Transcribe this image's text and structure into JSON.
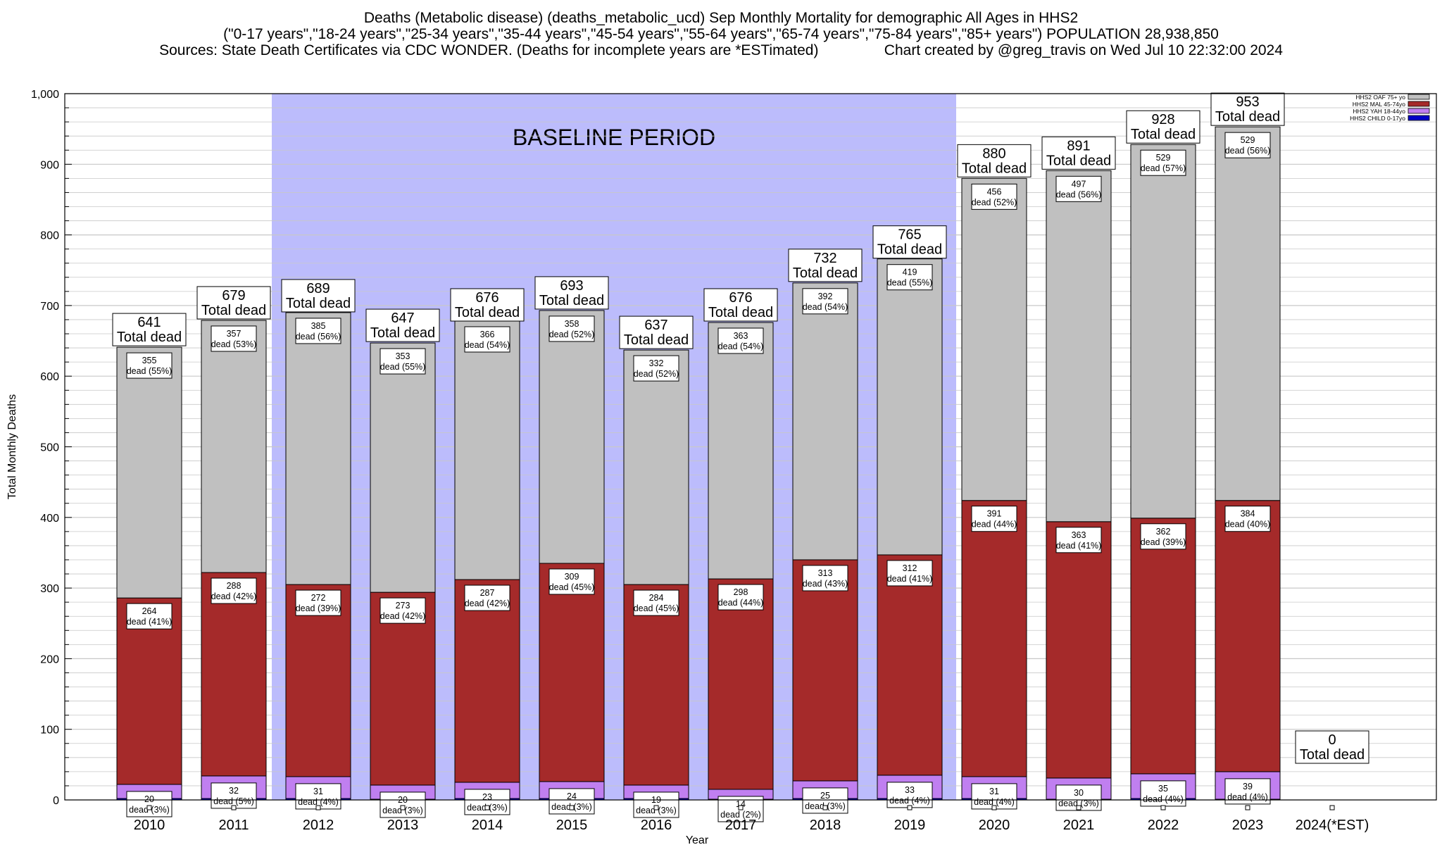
{
  "title": {
    "line1": "Deaths (Metabolic disease) (deaths_metabolic_ucd) Sep Monthly Mortality for demographic All Ages in HHS2",
    "line2": "(\"0-17 years\",\"18-24 years\",\"25-34 years\",\"35-44 years\",\"45-54 years\",\"55-64 years\",\"65-74 years\",\"75-84 years\",\"85+ years\") POPULATION 28,938,850",
    "line3": "Sources: State Death Certificates via CDC WONDER. (Deaths for incomplete years are *ESTimated)                Chart created by @greg_travis on Wed Jul 10 22:32:00 2024"
  },
  "colors": {
    "oaf": "#c0c0c0",
    "mal": "#a52a2a",
    "yah": "#c07ff0",
    "child": "#0000c8",
    "baseline": "#bcbcfc",
    "grid": "#c8c8c8"
  },
  "chart_data": {
    "type": "bar",
    "stacked": true,
    "xlabel": "Year",
    "ylabel": "Total Monthly Deaths",
    "ylim": [
      0,
      1000
    ],
    "yticks": [
      0,
      100,
      200,
      300,
      400,
      500,
      600,
      700,
      800,
      900,
      1000
    ],
    "ytick_labels": [
      "0",
      "100",
      "200",
      "300",
      "400",
      "500",
      "600",
      "700",
      "800",
      "900",
      "1,000"
    ],
    "grid": true,
    "categories": [
      "2010",
      "2011",
      "2012",
      "2013",
      "2014",
      "2015",
      "2016",
      "2017",
      "2018",
      "2019",
      "2020",
      "2021",
      "2022",
      "2023",
      "2024(*EST)"
    ],
    "totals": [
      641,
      679,
      689,
      647,
      676,
      693,
      637,
      676,
      732,
      765,
      880,
      891,
      928,
      953,
      0
    ],
    "total_label_suffix": "Total dead",
    "series": [
      {
        "key": "child",
        "name": "HHS2 CHILD 0-17yo",
        "values": [
          2,
          2,
          2,
          1,
          2,
          2,
          2,
          1,
          2,
          2,
          2,
          1,
          2,
          1,
          0
        ],
        "labels": []
      },
      {
        "key": "yah",
        "name": "HHS2 YAH 18-44yo",
        "values": [
          20,
          32,
          31,
          20,
          23,
          24,
          19,
          14,
          25,
          33,
          31,
          30,
          35,
          39,
          0
        ],
        "labels": [
          "dead (3%)",
          "dead (5%)",
          "dead (4%)",
          "dead (3%)",
          "dead (3%)",
          "dead (3%)",
          "dead (3%)",
          "dead (2%)",
          "dead (3%)",
          "dead (4%)",
          "dead (4%)",
          "dead (3%)",
          "dead (4%)",
          "dead (4%)",
          ""
        ]
      },
      {
        "key": "mal",
        "name": "HHS2 MAL 45-74yo",
        "values": [
          264,
          288,
          272,
          273,
          287,
          309,
          284,
          298,
          313,
          312,
          391,
          363,
          362,
          384,
          0
        ],
        "labels": [
          "dead (41%)",
          "dead (42%)",
          "dead (39%)",
          "dead (42%)",
          "dead (42%)",
          "dead (45%)",
          "dead (45%)",
          "dead (44%)",
          "dead (43%)",
          "dead (41%)",
          "dead (44%)",
          "dead (41%)",
          "dead (39%)",
          "dead (40%)",
          ""
        ]
      },
      {
        "key": "oaf",
        "name": "HHS2 OAF 75+ yo",
        "values": [
          355,
          357,
          385,
          353,
          366,
          358,
          332,
          363,
          392,
          419,
          456,
          497,
          529,
          529,
          0
        ],
        "labels": [
          "dead (55%)",
          "dead (53%)",
          "dead (56%)",
          "dead (55%)",
          "dead (54%)",
          "dead (52%)",
          "dead (52%)",
          "dead (54%)",
          "dead (54%)",
          "dead (55%)",
          "dead (52%)",
          "dead (56%)",
          "dead (57%)",
          "dead (56%)",
          ""
        ]
      }
    ],
    "legend": [
      "HHS2 OAF 75+ yo",
      "HHS2 MAL 45-74yo",
      "HHS2 YAH 18-44yo",
      "HHS2 CHILD 0-17yo"
    ],
    "legend_position": "top-right",
    "annotations": [
      {
        "text": "BASELINE PERIOD",
        "from": "2012",
        "to": "2019"
      }
    ]
  }
}
